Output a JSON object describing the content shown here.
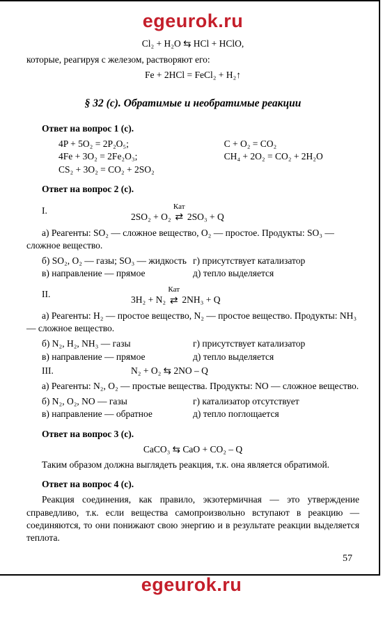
{
  "watermark_top": "egeurok.ru",
  "watermark_bottom": "egeurok.ru",
  "top_eq1": "Cl₂ + H₂O ⇆ HCl + HClO,",
  "top_para": "которые, реагируя с железом, растворяют его:",
  "top_eq2": "Fe + 2HCl = FeCl₂ + H₂↑",
  "section_title": "§ 32 (с). Обратимые и необратимые реакции",
  "ans1_head": "Ответ на вопрос 1 (с).",
  "ans1_left_1": "4P + 5O₂ = 2P₂O₅;",
  "ans1_left_2": "4Fe + 3O₂ = 2Fe₂O₃;",
  "ans1_left_3": "CS₂ + 3O₂ = CO₂ + 2SO₂",
  "ans1_right_1": "C + O₂ = CO₂",
  "ans1_right_2": "CH₄ + 2O₂ = CO₂ + 2H₂O",
  "ans2_head": "Ответ на вопрос 2 (с).",
  "r1_label": "I.",
  "r1_left": "2SO₂ + O₂",
  "r1_kat": "Кат",
  "r1_right": "2SO₃ + Q",
  "r1_a": "а) Реагенты: SO₂ — сложное вещество, O₂ — простое. Продукты: SO₃ — сложное вещество.",
  "r1_b": "б) SO₂, O₂ — газы; SO₃ — жидкость",
  "r1_g": "г) присутствует катализатор",
  "r1_v": "в) направление — прямое",
  "r1_d": "д) тепло выделяется",
  "r2_label": "II.",
  "r2_left": "3H₂ + N₂",
  "r2_kat": "Кат",
  "r2_right": "2NH₃ + Q",
  "r2_a": "а) Реагенты: H₂ — простое вещество, N₂ — простое вещество. Продукты: NH₃ — сложное вещество.",
  "r2_b": "б) N₂, H₂, NH₃ — газы",
  "r2_g": "г) присутствует катализатор",
  "r2_v": "в) направление — прямое",
  "r2_d": "д) тепло выделяется",
  "r3_label": "III.",
  "r3_eq": "N₂ + O₂ ⇆ 2NO – Q",
  "r3_a": "а) Реагенты: N₂, O₂ — простые вещества. Продукты: NO — сложное вещество.",
  "r3_b": "б) N₂, O₂, NO — газы",
  "r3_g": "г) катализатор отсутствует",
  "r3_v": "в) направление — обратное",
  "r3_d": "д) тепло поглощается",
  "ans3_head": "Ответ на вопрос 3 (с).",
  "ans3_eq": "CaCO₃ ⇆ CaO + CO₂ – Q",
  "ans3_para": "Таким образом должна выглядеть реакция, т.к. она является обратимой.",
  "ans4_head": "Ответ на вопрос 4 (с).",
  "ans4_para": "Реакция соединения, как правило, экзотермичная — это утверждение справедливо, т.к. если вещества самопроизвольно вступают в реакцию — соединяются, то они понижают свою энергию и в результате реакции выделяется теплота.",
  "page_num": "57"
}
